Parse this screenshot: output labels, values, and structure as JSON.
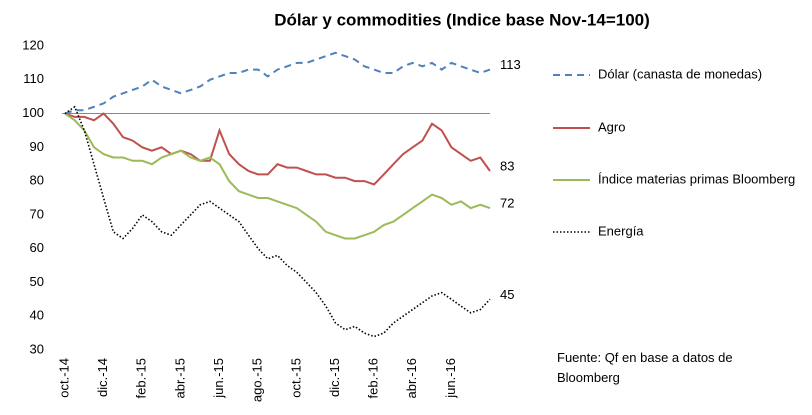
{
  "chart_data": {
    "type": "line",
    "title": "Dólar y commodities  (Indice base Nov-14=100)",
    "categories": [
      "oct.-14",
      null,
      null,
      null,
      "dic.-14",
      null,
      null,
      null,
      "feb.-15",
      null,
      null,
      null,
      "abr.-15",
      null,
      null,
      null,
      "jun.-15",
      null,
      null,
      null,
      "ago.-15",
      null,
      null,
      null,
      "oct.-15",
      null,
      null,
      null,
      "dic.-15",
      null,
      null,
      null,
      "feb.-16",
      null,
      null,
      null,
      "abr.-16",
      null,
      null,
      null,
      "jun.-16",
      null,
      null,
      null,
      null
    ],
    "series": [
      {
        "name": "Dólar (canasta de monedas)",
        "color": "#4f81bd",
        "dash": "dashed",
        "values": [
          100,
          101,
          101,
          102,
          103,
          105,
          106,
          107,
          108,
          110,
          108,
          107,
          106,
          107,
          108,
          110,
          111,
          112,
          112,
          113,
          113,
          111,
          113,
          114,
          115,
          115,
          116,
          117,
          118,
          117,
          116,
          114,
          113,
          112,
          112,
          114,
          115,
          114,
          115,
          113,
          115,
          114,
          113,
          112,
          113
        ]
      },
      {
        "name": "Agro",
        "color": "#c0504d",
        "dash": "solid",
        "values": [
          100,
          99,
          99,
          98,
          100,
          97,
          93,
          92,
          90,
          89,
          90,
          88,
          89,
          88,
          86,
          86,
          95,
          88,
          85,
          83,
          82,
          82,
          85,
          84,
          84,
          83,
          82,
          82,
          81,
          81,
          80,
          80,
          79,
          82,
          85,
          88,
          90,
          92,
          97,
          95,
          90,
          88,
          86,
          87,
          83
        ]
      },
      {
        "name": "Índice materias primas Bloomberg",
        "color": "#9bbb59",
        "dash": "solid",
        "values": [
          100,
          98,
          95,
          90,
          88,
          87,
          87,
          86,
          86,
          85,
          87,
          88,
          89,
          87,
          86,
          87,
          85,
          80,
          77,
          76,
          75,
          75,
          74,
          73,
          72,
          70,
          68,
          65,
          64,
          63,
          63,
          64,
          65,
          67,
          68,
          70,
          72,
          74,
          76,
          75,
          73,
          74,
          72,
          73,
          72
        ]
      },
      {
        "name": "Energía",
        "color": "#000000",
        "dash": "dotted",
        "values": [
          100,
          102,
          95,
          85,
          75,
          65,
          63,
          66,
          70,
          68,
          65,
          64,
          67,
          70,
          73,
          74,
          72,
          70,
          68,
          64,
          60,
          57,
          58,
          55,
          53,
          50,
          47,
          43,
          38,
          36,
          37,
          35,
          34,
          35,
          38,
          40,
          42,
          44,
          46,
          47,
          45,
          43,
          41,
          42,
          45
        ]
      }
    ],
    "ylim": [
      30,
      120
    ],
    "yticks": [
      30,
      40,
      50,
      60,
      70,
      80,
      90,
      100,
      110,
      120
    ],
    "reference_line": 100,
    "note": "Fuente: Qf en base a datos de Bloomberg",
    "legend": "right"
  }
}
